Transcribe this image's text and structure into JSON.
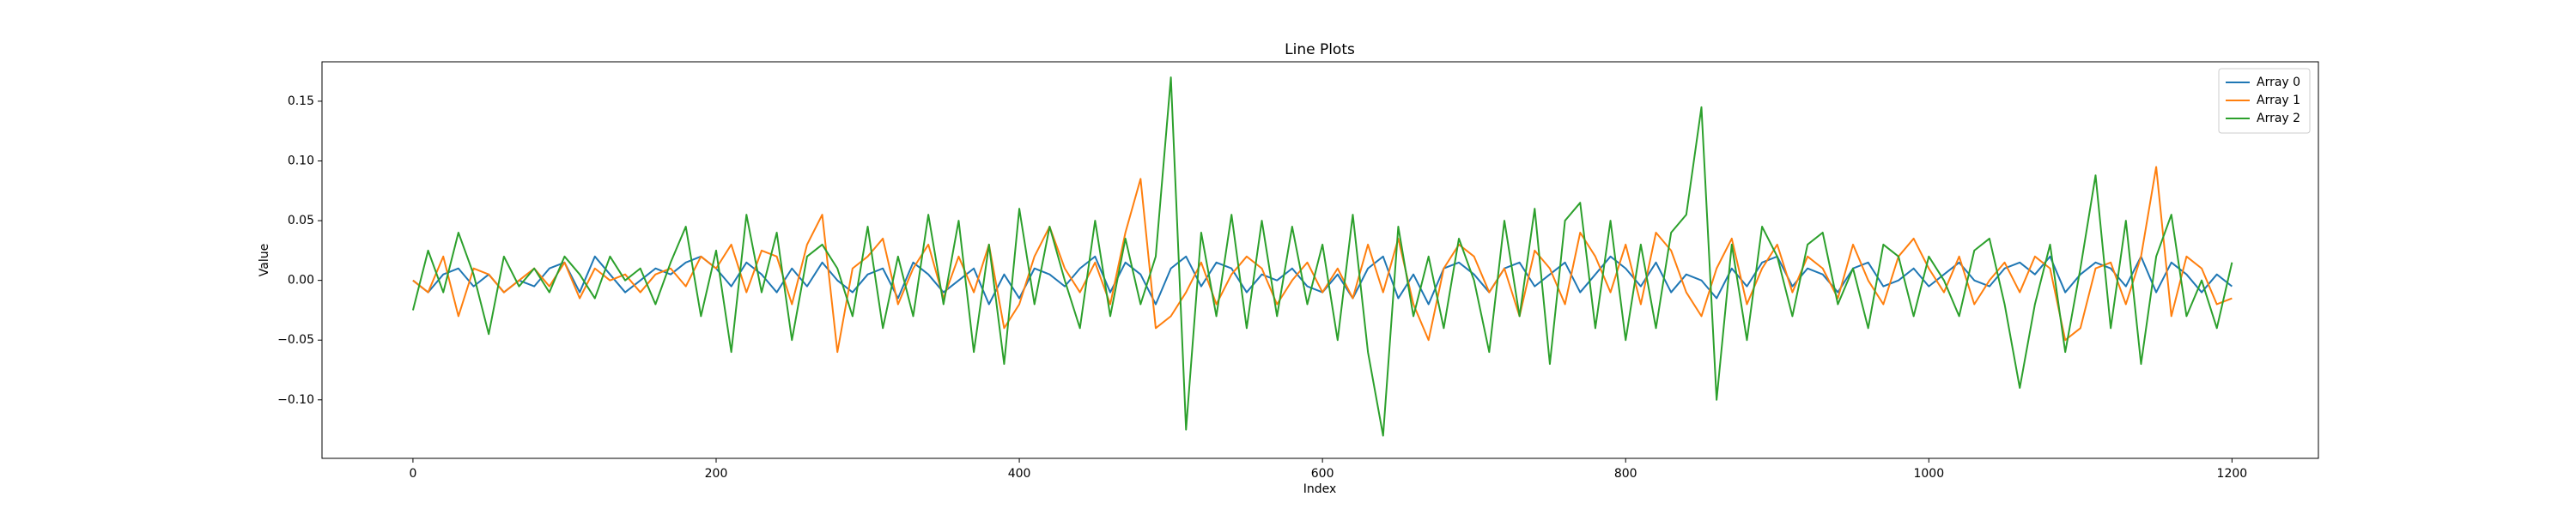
{
  "chart_data": {
    "type": "line",
    "title": "Line Plots",
    "xlabel": "Index",
    "ylabel": "Value",
    "x": [
      0,
      10,
      20,
      30,
      40,
      50,
      60,
      70,
      80,
      90,
      100,
      110,
      120,
      130,
      140,
      150,
      160,
      170,
      180,
      190,
      200,
      210,
      220,
      230,
      240,
      250,
      260,
      270,
      280,
      290,
      300,
      310,
      320,
      330,
      340,
      350,
      360,
      370,
      380,
      390,
      400,
      410,
      420,
      430,
      440,
      450,
      460,
      470,
      480,
      490,
      500,
      510,
      520,
      530,
      540,
      550,
      560,
      570,
      580,
      590,
      600,
      610,
      620,
      630,
      640,
      650,
      660,
      670,
      680,
      690,
      700,
      710,
      720,
      730,
      740,
      750,
      760,
      770,
      780,
      790,
      800,
      810,
      820,
      830,
      840,
      850,
      860,
      870,
      880,
      890,
      900,
      910,
      920,
      930,
      940,
      950,
      960,
      970,
      980,
      990,
      1000,
      1010,
      1020,
      1030,
      1040,
      1050,
      1060,
      1070,
      1080,
      1090,
      1100,
      1110,
      1120,
      1130,
      1140,
      1150,
      1160,
      1170,
      1180,
      1190,
      1200
    ],
    "series": [
      {
        "name": "Array 0",
        "color": "#1f77b4",
        "values": [
          0.0,
          -0.01,
          0.005,
          0.01,
          -0.005,
          0.005,
          -0.01,
          0.0,
          -0.005,
          0.01,
          0.015,
          -0.01,
          0.02,
          0.005,
          -0.01,
          0.0,
          0.01,
          0.005,
          0.015,
          0.02,
          0.01,
          -0.005,
          0.015,
          0.005,
          -0.01,
          0.01,
          -0.005,
          0.015,
          0.0,
          -0.01,
          0.005,
          0.01,
          -0.015,
          0.015,
          0.005,
          -0.01,
          0.0,
          0.01,
          -0.02,
          0.005,
          -0.015,
          0.01,
          0.005,
          -0.005,
          0.01,
          0.02,
          -0.01,
          0.015,
          0.005,
          -0.02,
          0.01,
          0.02,
          -0.005,
          0.015,
          0.01,
          -0.01,
          0.005,
          0.0,
          0.01,
          -0.005,
          -0.01,
          0.005,
          -0.015,
          0.01,
          0.02,
          -0.015,
          0.005,
          -0.02,
          0.01,
          0.015,
          0.005,
          -0.01,
          0.01,
          0.015,
          -0.005,
          0.005,
          0.015,
          -0.01,
          0.005,
          0.02,
          0.01,
          -0.005,
          0.015,
          -0.01,
          0.005,
          0.0,
          -0.015,
          0.01,
          -0.005,
          0.015,
          0.02,
          -0.005,
          0.01,
          0.005,
          -0.01,
          0.01,
          0.015,
          -0.005,
          0.0,
          0.01,
          -0.005,
          0.005,
          0.015,
          0.0,
          -0.005,
          0.01,
          0.015,
          0.005,
          0.02,
          -0.01,
          0.005,
          0.015,
          0.01,
          -0.005,
          0.02,
          -0.01,
          0.015,
          0.005,
          -0.01,
          0.005,
          -0.005
        ]
      },
      {
        "name": "Array 1",
        "color": "#ff7f0e",
        "values": [
          0.0,
          -0.01,
          0.02,
          -0.03,
          0.01,
          0.005,
          -0.01,
          0.0,
          0.01,
          -0.005,
          0.015,
          -0.015,
          0.01,
          0.0,
          0.005,
          -0.01,
          0.005,
          0.01,
          -0.005,
          0.02,
          0.01,
          0.03,
          -0.01,
          0.025,
          0.02,
          -0.02,
          0.03,
          0.055,
          -0.06,
          0.01,
          0.02,
          0.035,
          -0.02,
          0.01,
          0.03,
          -0.015,
          0.02,
          -0.01,
          0.03,
          -0.04,
          -0.02,
          0.02,
          0.045,
          0.01,
          -0.01,
          0.015,
          -0.02,
          0.04,
          0.085,
          -0.04,
          -0.03,
          -0.01,
          0.015,
          -0.02,
          0.005,
          0.02,
          0.01,
          -0.02,
          0.0,
          0.015,
          -0.01,
          0.01,
          -0.015,
          0.03,
          -0.01,
          0.035,
          -0.02,
          -0.05,
          0.01,
          0.03,
          0.02,
          -0.01,
          0.01,
          -0.03,
          0.025,
          0.01,
          -0.02,
          0.04,
          0.02,
          -0.01,
          0.03,
          -0.02,
          0.04,
          0.025,
          -0.01,
          -0.03,
          0.01,
          0.035,
          -0.02,
          0.01,
          0.03,
          -0.01,
          0.02,
          0.01,
          -0.015,
          0.03,
          0.0,
          -0.02,
          0.02,
          0.035,
          0.01,
          -0.01,
          0.02,
          -0.02,
          0.0,
          0.015,
          -0.01,
          0.02,
          0.01,
          -0.05,
          -0.04,
          0.01,
          0.015,
          -0.02,
          0.02,
          0.095,
          -0.03,
          0.02,
          0.01,
          -0.02,
          -0.015
        ]
      },
      {
        "name": "Array 2",
        "color": "#2ca02c",
        "values": [
          -0.025,
          0.025,
          -0.01,
          0.04,
          0.005,
          -0.045,
          0.02,
          -0.005,
          0.01,
          -0.01,
          0.02,
          0.005,
          -0.015,
          0.02,
          0.0,
          0.01,
          -0.02,
          0.015,
          0.045,
          -0.03,
          0.025,
          -0.06,
          0.055,
          -0.01,
          0.04,
          -0.05,
          0.02,
          0.03,
          0.01,
          -0.03,
          0.045,
          -0.04,
          0.02,
          -0.03,
          0.055,
          -0.02,
          0.05,
          -0.06,
          0.03,
          -0.07,
          0.06,
          -0.02,
          0.045,
          0.0,
          -0.04,
          0.05,
          -0.03,
          0.035,
          -0.02,
          0.02,
          0.17,
          -0.125,
          0.04,
          -0.03,
          0.055,
          -0.04,
          0.05,
          -0.03,
          0.045,
          -0.02,
          0.03,
          -0.05,
          0.055,
          -0.06,
          -0.13,
          0.045,
          -0.03,
          0.02,
          -0.04,
          0.035,
          0.0,
          -0.06,
          0.05,
          -0.03,
          0.06,
          -0.07,
          0.05,
          0.065,
          -0.04,
          0.05,
          -0.05,
          0.03,
          -0.04,
          0.04,
          0.055,
          0.145,
          -0.1,
          0.03,
          -0.05,
          0.045,
          0.02,
          -0.03,
          0.03,
          0.04,
          -0.02,
          0.01,
          -0.04,
          0.03,
          0.02,
          -0.03,
          0.02,
          0.0,
          -0.03,
          0.025,
          0.035,
          -0.02,
          -0.09,
          -0.02,
          0.03,
          -0.06,
          0.01,
          0.088,
          -0.04,
          0.05,
          -0.07,
          0.02,
          0.055,
          -0.03,
          0.0,
          -0.04,
          0.015
        ]
      }
    ],
    "xlim": [
      -60,
      1257
    ],
    "ylim": [
      -0.149,
      0.183
    ],
    "xticks": [
      0,
      200,
      400,
      600,
      800,
      1000,
      1200
    ],
    "yticks": [
      {
        "value": -0.1,
        "label": "−0.10"
      },
      {
        "value": -0.05,
        "label": "−0.05"
      },
      {
        "value": 0,
        "label": "0.00"
      },
      {
        "value": 0.05,
        "label": "0.05"
      },
      {
        "value": 0.1,
        "label": "0.10"
      },
      {
        "value": 0.15,
        "label": "0.15"
      }
    ],
    "grid": false,
    "legend": "upper right"
  }
}
